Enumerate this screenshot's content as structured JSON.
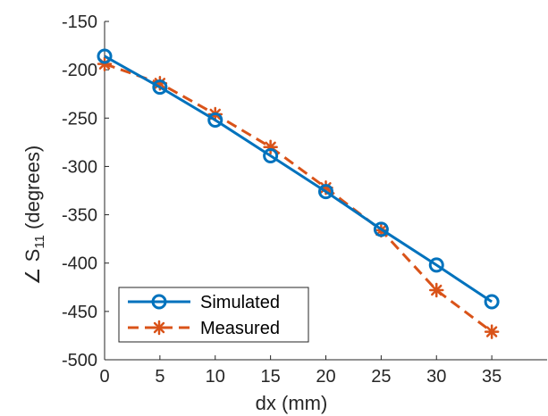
{
  "chart_data": {
    "type": "line",
    "xlabel": "dx (mm)",
    "ylabel": {
      "prefix": "∠ S",
      "subscript": "11",
      "suffix": " (degrees)"
    },
    "xlim": [
      0,
      40
    ],
    "ylim": [
      -500,
      -150
    ],
    "xticks": [
      0,
      5,
      10,
      15,
      20,
      25,
      30,
      35
    ],
    "yticks": [
      -150,
      -200,
      -250,
      -300,
      -350,
      -400,
      -450,
      -500
    ],
    "grid": false,
    "legend": "bottom-left",
    "x": [
      0,
      5,
      10,
      15,
      20,
      25,
      30,
      35
    ],
    "series": [
      {
        "name": "Simulated",
        "values": [
          -186,
          -218,
          -252,
          -289,
          -326,
          -365,
          -402,
          -440
        ],
        "color": "#0072BD",
        "marker": "circle",
        "line": "solid"
      },
      {
        "name": "Measured",
        "values": [
          -194,
          -214,
          -246,
          -280,
          -322,
          -366,
          -428,
          -471
        ],
        "color": "#D95319",
        "marker": "asterisk",
        "line": "dashed"
      }
    ]
  }
}
